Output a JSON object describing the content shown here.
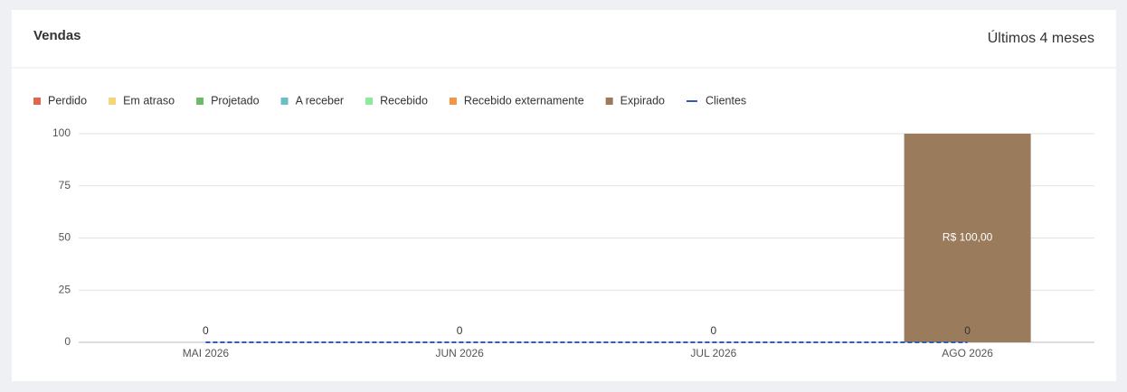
{
  "header": {
    "title": "Vendas",
    "period": "Últimos 4 meses"
  },
  "chart_data": {
    "type": "bar",
    "stacked": true,
    "categories": [
      "MAI 2026",
      "JUN 2026",
      "JUL 2026",
      "AGO 2026"
    ],
    "series": [
      {
        "name": "Perdido",
        "color": "#e0674f",
        "values": [
          0,
          0,
          0,
          0
        ]
      },
      {
        "name": "Em atraso",
        "color": "#f5d57a",
        "values": [
          0,
          0,
          0,
          0
        ]
      },
      {
        "name": "Projetado",
        "color": "#6dbb6a",
        "values": [
          0,
          0,
          0,
          0
        ]
      },
      {
        "name": "A receber",
        "color": "#6bbfc6",
        "values": [
          0,
          0,
          0,
          0
        ]
      },
      {
        "name": "Recebido",
        "color": "#8ee89a",
        "values": [
          0,
          0,
          0,
          0
        ]
      },
      {
        "name": "Recebido externamente",
        "color": "#f0954a",
        "values": [
          0,
          0,
          0,
          0
        ]
      },
      {
        "name": "Expirado",
        "color": "#9a7b5c",
        "values": [
          0,
          0,
          0,
          100
        ],
        "value_labels": [
          null,
          null,
          null,
          "R$ 100,00"
        ]
      },
      {
        "name": "Clientes",
        "color": "#2e5bb5",
        "type": "line",
        "dashed": true,
        "show_values": true,
        "values": [
          0,
          0,
          0,
          0
        ]
      }
    ],
    "ylim": [
      0,
      100
    ],
    "yticks": [
      0,
      25,
      50,
      75,
      100
    ],
    "grid": true,
    "legend": "top-left"
  }
}
